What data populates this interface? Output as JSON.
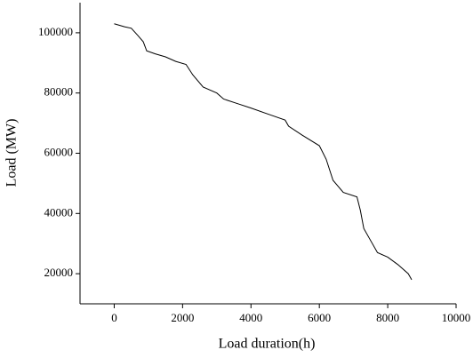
{
  "chart_data": {
    "type": "line",
    "x_label": "Load duration(h)",
    "y_label": "Load (MW)",
    "x": [
      0,
      300,
      500,
      700,
      850,
      950,
      1200,
      1500,
      1800,
      2100,
      2300,
      2600,
      3000,
      3200,
      3600,
      4000,
      4500,
      5000,
      5100,
      5500,
      6000,
      6200,
      6400,
      6700,
      7100,
      7200,
      7300,
      7500,
      7700,
      8000,
      8300,
      8600,
      8700
    ],
    "series": [
      {
        "color": "#000000",
        "values": [
          103000,
          102000,
          101500,
          99000,
          97000,
          94000,
          93000,
          92000,
          90500,
          89500,
          86000,
          82000,
          80000,
          78000,
          76500,
          75000,
          73000,
          71000,
          69000,
          66000,
          62500,
          58000,
          51000,
          47000,
          45500,
          41000,
          35000,
          31000,
          27000,
          25500,
          23000,
          20000,
          18000
        ]
      }
    ],
    "xlim": [
      -1000,
      10000
    ],
    "xticks": [
      0,
      2000,
      4000,
      6000,
      8000,
      10000
    ],
    "ylim": [
      10000,
      110000
    ],
    "yticks": [
      20000,
      40000,
      60000,
      80000,
      100000
    ]
  }
}
